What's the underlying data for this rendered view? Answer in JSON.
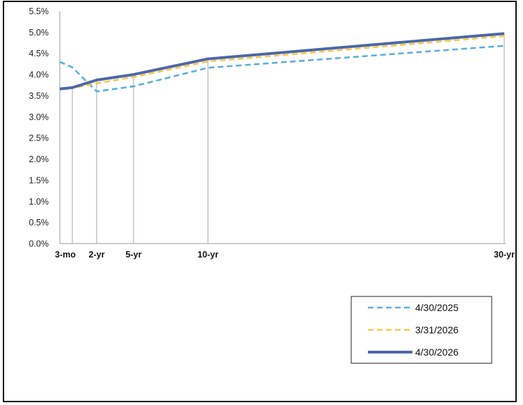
{
  "chart_data": {
    "type": "line",
    "categories": [
      "3-mo",
      "2-yr",
      "5-yr",
      "10-yr",
      "30-yr"
    ],
    "x": [
      0,
      0.25,
      2,
      5,
      10,
      30
    ],
    "tick_positions": [
      0.25,
      2,
      5,
      10,
      30
    ],
    "ylim": [
      0,
      5.5
    ],
    "yticks": [
      "0.0%",
      "0.5%",
      "1.0%",
      "1.5%",
      "2.0%",
      "2.5%",
      "3.0%",
      "3.5%",
      "4.0%",
      "4.5%",
      "5.0%",
      "5.5%"
    ],
    "ylabel": "",
    "xlabel": "",
    "grid": "vertical lines at maturities",
    "legend_position": "bottom-right",
    "series": [
      {
        "name": "4/30/2025",
        "values": [
          4.3,
          4.17,
          3.6,
          3.72,
          4.16,
          4.68
        ],
        "color": "#5aaee0",
        "style": "dashed"
      },
      {
        "name": "3/31/2026",
        "values": [
          3.66,
          3.68,
          3.79,
          3.94,
          4.31,
          4.91
        ],
        "color": "#f7c948",
        "style": "dashed"
      },
      {
        "name": "4/30/2026",
        "values": [
          3.66,
          3.69,
          3.87,
          4.0,
          4.37,
          4.97
        ],
        "color": "#4e67a6",
        "style": "solid"
      }
    ]
  }
}
